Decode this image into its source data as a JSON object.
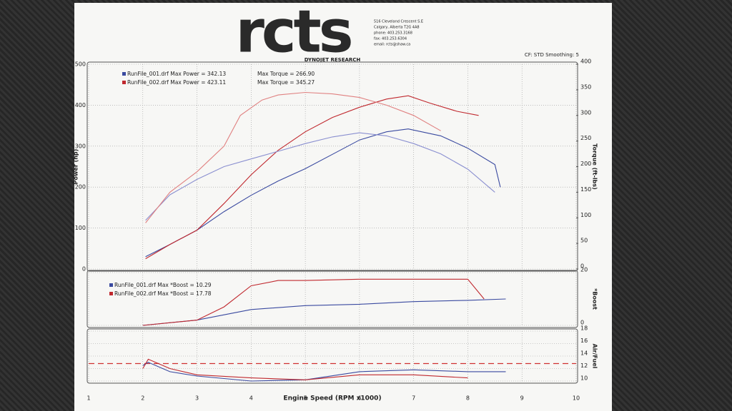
{
  "header": {
    "logo": "rcts",
    "address": [
      "516 Cleveland Crescent S.E",
      "Calgary, Alberta T2G 4A8",
      "phone: 403.253.3168",
      "fax: 403.253.6304",
      "email: rcts@shaw.ca"
    ],
    "brand": "DYNOJET RESEARCH",
    "settings": "CF: STD  Smoothing: 5"
  },
  "chart_data": [
    {
      "type": "line",
      "ylabel": "Power (hp)",
      "y2label": "Torque (ft-lbs)",
      "xlim": [
        1,
        10
      ],
      "ylim": [
        0,
        500
      ],
      "yticks": [
        0,
        100,
        200,
        300,
        400,
        500
      ],
      "y2lim": [
        0,
        400
      ],
      "y2ticks": [
        0,
        50,
        100,
        150,
        200,
        250,
        300,
        350,
        400
      ],
      "grid": true,
      "series": [
        {
          "name": "RunFile_001.drf Max Power = 342.13",
          "color": "#3a4aa0",
          "x": [
            2.05,
            2.5,
            3,
            3.5,
            4,
            4.5,
            5,
            5.5,
            6,
            6.5,
            6.9,
            7.5,
            8,
            8.5,
            8.6
          ],
          "values": [
            30,
            60,
            95,
            140,
            180,
            215,
            245,
            280,
            315,
            335,
            342,
            325,
            295,
            255,
            200
          ]
        },
        {
          "name": "RunFile_002.drf Max Power = 423.11",
          "color": "#c0282e",
          "x": [
            2.05,
            2.5,
            3,
            3.5,
            4,
            4.5,
            5,
            5.5,
            6,
            6.5,
            6.9,
            7.3,
            7.8,
            8.2
          ],
          "values": [
            25,
            60,
            95,
            160,
            230,
            290,
            335,
            370,
            395,
            415,
            423,
            405,
            385,
            375
          ]
        },
        {
          "name": "Max Torque = 266.90",
          "color": "#8a8fd0",
          "axis": "y2",
          "x": [
            2.05,
            2.5,
            3,
            3.5,
            4,
            4.5,
            5,
            5.5,
            6,
            6.5,
            7,
            7.5,
            8,
            8.5
          ],
          "values": [
            95,
            145,
            175,
            200,
            215,
            230,
            245,
            258,
            266,
            260,
            245,
            225,
            195,
            150
          ]
        },
        {
          "name": "Max Torque = 345.27",
          "color": "#e08080",
          "axis": "y2",
          "x": [
            2.05,
            2.5,
            3,
            3.5,
            3.8,
            4.2,
            4.5,
            5,
            5.5,
            6,
            6.5,
            7,
            7.5
          ],
          "values": [
            90,
            150,
            190,
            240,
            300,
            330,
            340,
            345,
            342,
            335,
            320,
            300,
            270
          ]
        }
      ]
    },
    {
      "type": "line",
      "ylabel": "*Boost",
      "xlim": [
        1,
        10
      ],
      "ylim": [
        0,
        20
      ],
      "yticks": [
        0,
        20
      ],
      "grid": true,
      "series": [
        {
          "name": "RunFile_001.drf Max *Boost = 10.29",
          "color": "#3a4aa0",
          "x": [
            2,
            3,
            3.5,
            4,
            5,
            6,
            7,
            8,
            8.7
          ],
          "values": [
            0,
            2,
            4,
            6,
            7.5,
            8,
            9,
            9.5,
            10
          ]
        },
        {
          "name": "RunFile_002.drf Max *Boost = 17.78",
          "color": "#c0282e",
          "x": [
            2,
            3,
            3.5,
            4,
            4.5,
            5,
            6,
            7,
            8,
            8.3
          ],
          "values": [
            0,
            2,
            7,
            15,
            17,
            17,
            17.5,
            17.5,
            17.5,
            10
          ]
        }
      ]
    },
    {
      "type": "line",
      "ylabel": "Air/Fuel",
      "xlabel": "Engine Speed (RPM x1000)",
      "xlim": [
        1,
        10
      ],
      "xticks": [
        1,
        2,
        3,
        4,
        5,
        6,
        7,
        8,
        9,
        10
      ],
      "ylim": [
        10,
        18
      ],
      "yticks": [
        10,
        12,
        14,
        16,
        18
      ],
      "grid": true,
      "reference_line": 12.8,
      "reference_color": "#d03030",
      "series": [
        {
          "color": "#3a4aa0",
          "x": [
            2,
            2.1,
            2.5,
            3,
            4,
            5,
            6,
            7,
            8,
            8.7
          ],
          "values": [
            12.5,
            13,
            11.5,
            10.8,
            10,
            10.2,
            11.5,
            11.8,
            11.5,
            11.5
          ]
        },
        {
          "color": "#c0282e",
          "x": [
            2,
            2.1,
            2.5,
            3,
            4,
            5,
            6,
            7,
            8
          ],
          "values": [
            12,
            13.5,
            12,
            11,
            10.5,
            10.2,
            11,
            11,
            10.5
          ]
        }
      ]
    }
  ]
}
